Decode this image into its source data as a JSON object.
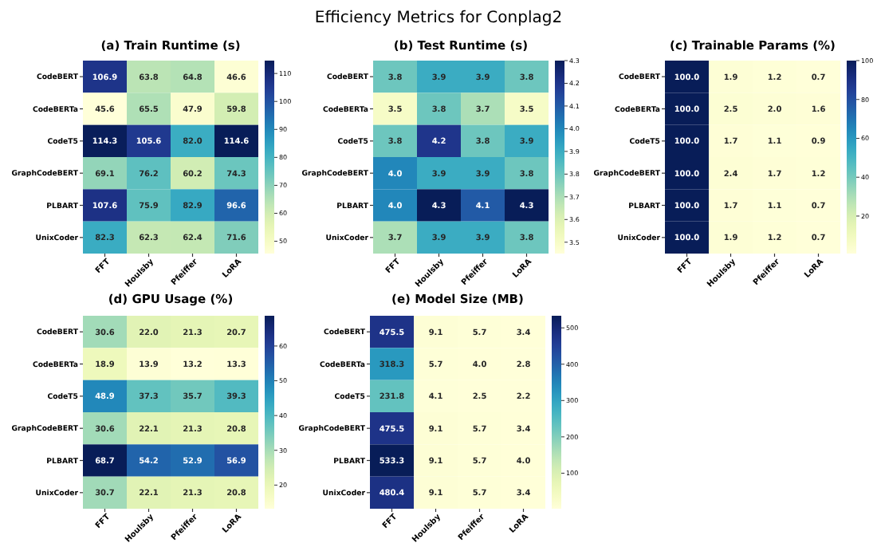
{
  "chart_data": [
    {
      "type": "heatmap",
      "title": "(a) Train Runtime (s)",
      "annotations": [
        "Efficiency Metrics for Conplag2"
      ],
      "categories": [
        "FFT",
        "Houlsby",
        "Pfeiffer",
        "LoRA"
      ],
      "y_categories": [
        "CodeBERT",
        "CodeBERTa",
        "CodeT5",
        "GraphCodeBERT",
        "PLBART",
        "UnixCoder"
      ],
      "cells": [
        [
          106.9,
          63.8,
          64.8,
          46.6
        ],
        [
          45.6,
          65.5,
          47.9,
          59.8
        ],
        [
          114.3,
          105.6,
          82.0,
          114.6
        ],
        [
          69.1,
          76.2,
          60.2,
          74.3
        ],
        [
          107.6,
          75.9,
          82.9,
          96.6
        ],
        [
          82.3,
          62.3,
          62.4,
          71.6
        ]
      ],
      "cell_labels": [
        [
          "106.9",
          "63.8",
          "64.8",
          "46.6"
        ],
        [
          "45.6",
          "65.5",
          "47.9",
          "59.8"
        ],
        [
          "114.3",
          "105.6",
          "82.0",
          "114.6"
        ],
        [
          "69.1",
          "76.2",
          "60.2",
          "74.3"
        ],
        [
          "107.6",
          "75.9",
          "82.9",
          "96.6"
        ],
        [
          "82.3",
          "62.3",
          "62.4",
          "71.6"
        ]
      ],
      "clim": [
        45.6,
        114.6
      ],
      "cticks": [
        50,
        60,
        70,
        80,
        90,
        100,
        110
      ]
    },
    {
      "type": "heatmap",
      "title": "(b) Test Runtime (s)",
      "categories": [
        "FFT",
        "Houlsby",
        "Pfeiffer",
        "LoRA"
      ],
      "y_categories": [
        "CodeBERT",
        "CodeBERTa",
        "CodeT5",
        "GraphCodeBERT",
        "PLBART",
        "UnixCoder"
      ],
      "cells": [
        [
          3.8,
          3.9,
          3.9,
          3.8
        ],
        [
          3.5,
          3.8,
          3.7,
          3.5
        ],
        [
          3.8,
          4.2,
          3.8,
          3.9
        ],
        [
          4.0,
          3.9,
          3.9,
          3.8
        ],
        [
          4.0,
          4.3,
          4.1,
          4.3
        ],
        [
          3.7,
          3.9,
          3.9,
          3.8
        ]
      ],
      "cell_labels": [
        [
          "3.8",
          "3.9",
          "3.9",
          "3.8"
        ],
        [
          "3.5",
          "3.8",
          "3.7",
          "3.5"
        ],
        [
          "3.8",
          "4.2",
          "3.8",
          "3.9"
        ],
        [
          "4.0",
          "3.9",
          "3.9",
          "3.8"
        ],
        [
          "4.0",
          "4.3",
          "4.1",
          "4.3"
        ],
        [
          "3.7",
          "3.9",
          "3.9",
          "3.8"
        ]
      ],
      "clim": [
        3.45,
        4.3
      ],
      "cticks": [
        {
          "value": 3.5,
          "label": "3.5"
        },
        {
          "value": 3.6,
          "label": "3.6"
        },
        {
          "value": 3.7,
          "label": "3.7"
        },
        {
          "value": 3.8,
          "label": "3.8"
        },
        {
          "value": 3.9,
          "label": "3.9"
        },
        {
          "value": 4.0,
          "label": "4.0"
        },
        {
          "value": 4.1,
          "label": "4.1"
        },
        {
          "value": 4.2,
          "label": "4.2"
        },
        {
          "value": 4.3,
          "label": "4.3"
        }
      ]
    },
    {
      "type": "heatmap",
      "title": "(c) Trainable Params (%)",
      "categories": [
        "FFT",
        "Houlsby",
        "Pfeiffer",
        "LoRA"
      ],
      "y_categories": [
        "CodeBERT",
        "CodeBERTa",
        "CodeT5",
        "GraphCodeBERT",
        "PLBART",
        "UnixCoder"
      ],
      "cells": [
        [
          100.0,
          1.9,
          1.2,
          0.7
        ],
        [
          100.0,
          2.5,
          2.0,
          1.6
        ],
        [
          100.0,
          1.7,
          1.1,
          0.9
        ],
        [
          100.0,
          2.4,
          1.7,
          1.2
        ],
        [
          100.0,
          1.7,
          1.1,
          0.7
        ],
        [
          100.0,
          1.9,
          1.2,
          0.7
        ]
      ],
      "cell_labels": [
        [
          "100.0",
          "1.9",
          "1.2",
          "0.7"
        ],
        [
          "100.0",
          "2.5",
          "2.0",
          "1.6"
        ],
        [
          "100.0",
          "1.7",
          "1.1",
          "0.9"
        ],
        [
          "100.0",
          "2.4",
          "1.7",
          "1.2"
        ],
        [
          "100.0",
          "1.7",
          "1.1",
          "0.7"
        ],
        [
          "100.0",
          "1.9",
          "1.2",
          "0.7"
        ]
      ],
      "clim": [
        0.7,
        100
      ],
      "cticks": [
        20,
        40,
        60,
        80,
        100
      ]
    },
    {
      "type": "heatmap",
      "title": "(d) GPU Usage (%)",
      "categories": [
        "FFT",
        "Houlsby",
        "Pfeiffer",
        "LoRA"
      ],
      "y_categories": [
        "CodeBERT",
        "CodeBERTa",
        "CodeT5",
        "GraphCodeBERT",
        "PLBART",
        "UnixCoder"
      ],
      "cells": [
        [
          30.6,
          22.0,
          21.3,
          20.7
        ],
        [
          18.9,
          13.9,
          13.2,
          13.3
        ],
        [
          48.9,
          37.3,
          35.7,
          39.3
        ],
        [
          30.6,
          22.1,
          21.3,
          20.8
        ],
        [
          68.7,
          54.2,
          52.9,
          56.9
        ],
        [
          30.7,
          22.1,
          21.3,
          20.8
        ]
      ],
      "cell_labels": [
        [
          "30.6",
          "22.0",
          "21.3",
          "20.7"
        ],
        [
          "18.9",
          "13.9",
          "13.2",
          "13.3"
        ],
        [
          "48.9",
          "37.3",
          "35.7",
          "39.3"
        ],
        [
          "30.6",
          "22.1",
          "21.3",
          "20.8"
        ],
        [
          "68.7",
          "54.2",
          "52.9",
          "56.9"
        ],
        [
          "30.7",
          "22.1",
          "21.3",
          "20.8"
        ]
      ],
      "clim": [
        13.2,
        68.7
      ],
      "cticks": [
        20,
        30,
        40,
        50,
        60
      ]
    },
    {
      "type": "heatmap",
      "title": "(e) Model Size (MB)",
      "categories": [
        "FFT",
        "Houlsby",
        "Pfeiffer",
        "LoRA"
      ],
      "y_categories": [
        "CodeBERT",
        "CodeBERTa",
        "CodeT5",
        "GraphCodeBERT",
        "PLBART",
        "UnixCoder"
      ],
      "cells": [
        [
          475.5,
          9.1,
          5.7,
          3.4
        ],
        [
          318.3,
          5.7,
          4.0,
          2.8
        ],
        [
          231.8,
          4.1,
          2.5,
          2.2
        ],
        [
          475.5,
          9.1,
          5.7,
          3.4
        ],
        [
          533.3,
          9.1,
          5.7,
          4.0
        ],
        [
          480.4,
          9.1,
          5.7,
          3.4
        ]
      ],
      "cell_labels": [
        [
          "475.5",
          "9.1",
          "5.7",
          "3.4"
        ],
        [
          "318.3",
          "5.7",
          "4.0",
          "2.8"
        ],
        [
          "231.8",
          "4.1",
          "2.5",
          "2.2"
        ],
        [
          "475.5",
          "9.1",
          "5.7",
          "3.4"
        ],
        [
          "533.3",
          "9.1",
          "5.7",
          "4.0"
        ],
        [
          "480.4",
          "9.1",
          "5.7",
          "3.4"
        ]
      ],
      "clim": [
        2.2,
        533.3
      ],
      "cticks": [
        100,
        200,
        300,
        400,
        500
      ]
    }
  ]
}
